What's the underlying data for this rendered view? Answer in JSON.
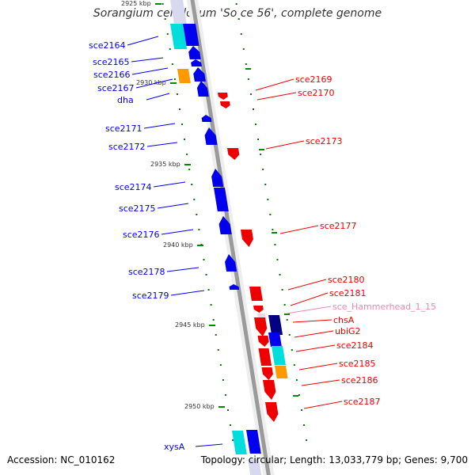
{
  "title": "Sorangium cellulosum 'So ce 56', complete genome",
  "accession": "Accession: NC_010162",
  "topology": "Topology: circular; Length: 13,033,779 bp; Genes: 9,700",
  "colors": {
    "backbone": "#9a9a9a",
    "forward": "#0000ee",
    "reverse": "#ee0000",
    "navy": "#000080",
    "cyan": "#00dddd",
    "orange": "#ff9900",
    "rna_label": "#ee88aa",
    "tick": "#008800",
    "minor_tick": "#007700"
  },
  "ticks": [
    {
      "label": "2925 kbp"
    },
    {
      "label": "2930 kbp"
    },
    {
      "label": "2935 kbp"
    },
    {
      "label": "2940 kbp"
    },
    {
      "label": "2945 kbp"
    },
    {
      "label": "2950 kbp"
    }
  ],
  "left_labels": [
    {
      "text": "sce2164"
    },
    {
      "text": "sce2165"
    },
    {
      "text": "sce2166"
    },
    {
      "text": "sce2167"
    },
    {
      "text": "dha"
    },
    {
      "text": "sce2171"
    },
    {
      "text": "sce2172"
    },
    {
      "text": "sce2174"
    },
    {
      "text": "sce2175"
    },
    {
      "text": "sce2176"
    },
    {
      "text": "sce2178"
    },
    {
      "text": "sce2179"
    },
    {
      "text": "xysA"
    }
  ],
  "right_labels": [
    {
      "text": "sce2169"
    },
    {
      "text": "sce2170"
    },
    {
      "text": "sce2173"
    },
    {
      "text": "sce2177"
    },
    {
      "text": "sce2180"
    },
    {
      "text": "sce2181"
    },
    {
      "text": "sce_Hammerhead_1_15"
    },
    {
      "text": "chsA"
    },
    {
      "text": "ubiG2"
    },
    {
      "text": "sce2184"
    },
    {
      "text": "sce2185"
    },
    {
      "text": "sce2186"
    },
    {
      "text": "sce2187"
    }
  ]
}
